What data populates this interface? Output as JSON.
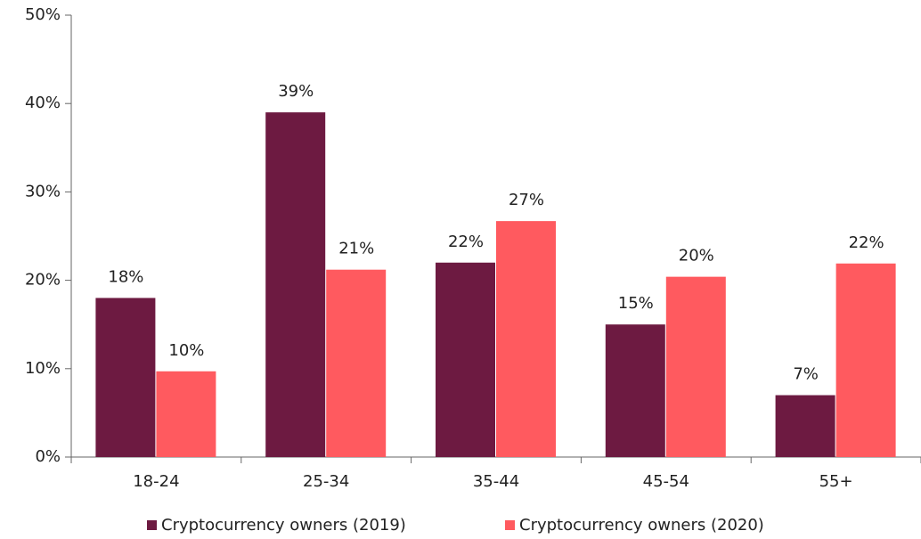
{
  "chart_data": {
    "type": "bar",
    "categories": [
      "18-24",
      "25-34",
      "35-44",
      "45-54",
      "55+"
    ],
    "series": [
      {
        "name": "Cryptocurrency owners (2019)",
        "color": "#6d1a41",
        "values": [
          18,
          39,
          22,
          15,
          7
        ],
        "value_labels": [
          "18%",
          "39%",
          "22%",
          "15%",
          "7%"
        ]
      },
      {
        "name": "Cryptocurrency owners (2020)",
        "color": "#ff5a5f",
        "values": [
          9.7,
          21.2,
          26.7,
          20.4,
          21.9
        ],
        "value_labels": [
          "10%",
          "21%",
          "27%",
          "20%",
          "22%"
        ]
      }
    ],
    "ylim": [
      0,
      50
    ],
    "yticks": [
      {
        "value": 0,
        "label": "0%"
      },
      {
        "value": 10,
        "label": "10%"
      },
      {
        "value": 20,
        "label": "20%"
      },
      {
        "value": 30,
        "label": "30%"
      },
      {
        "value": 40,
        "label": "40%"
      },
      {
        "value": 50,
        "label": "50%"
      }
    ],
    "legend": "bottom"
  }
}
